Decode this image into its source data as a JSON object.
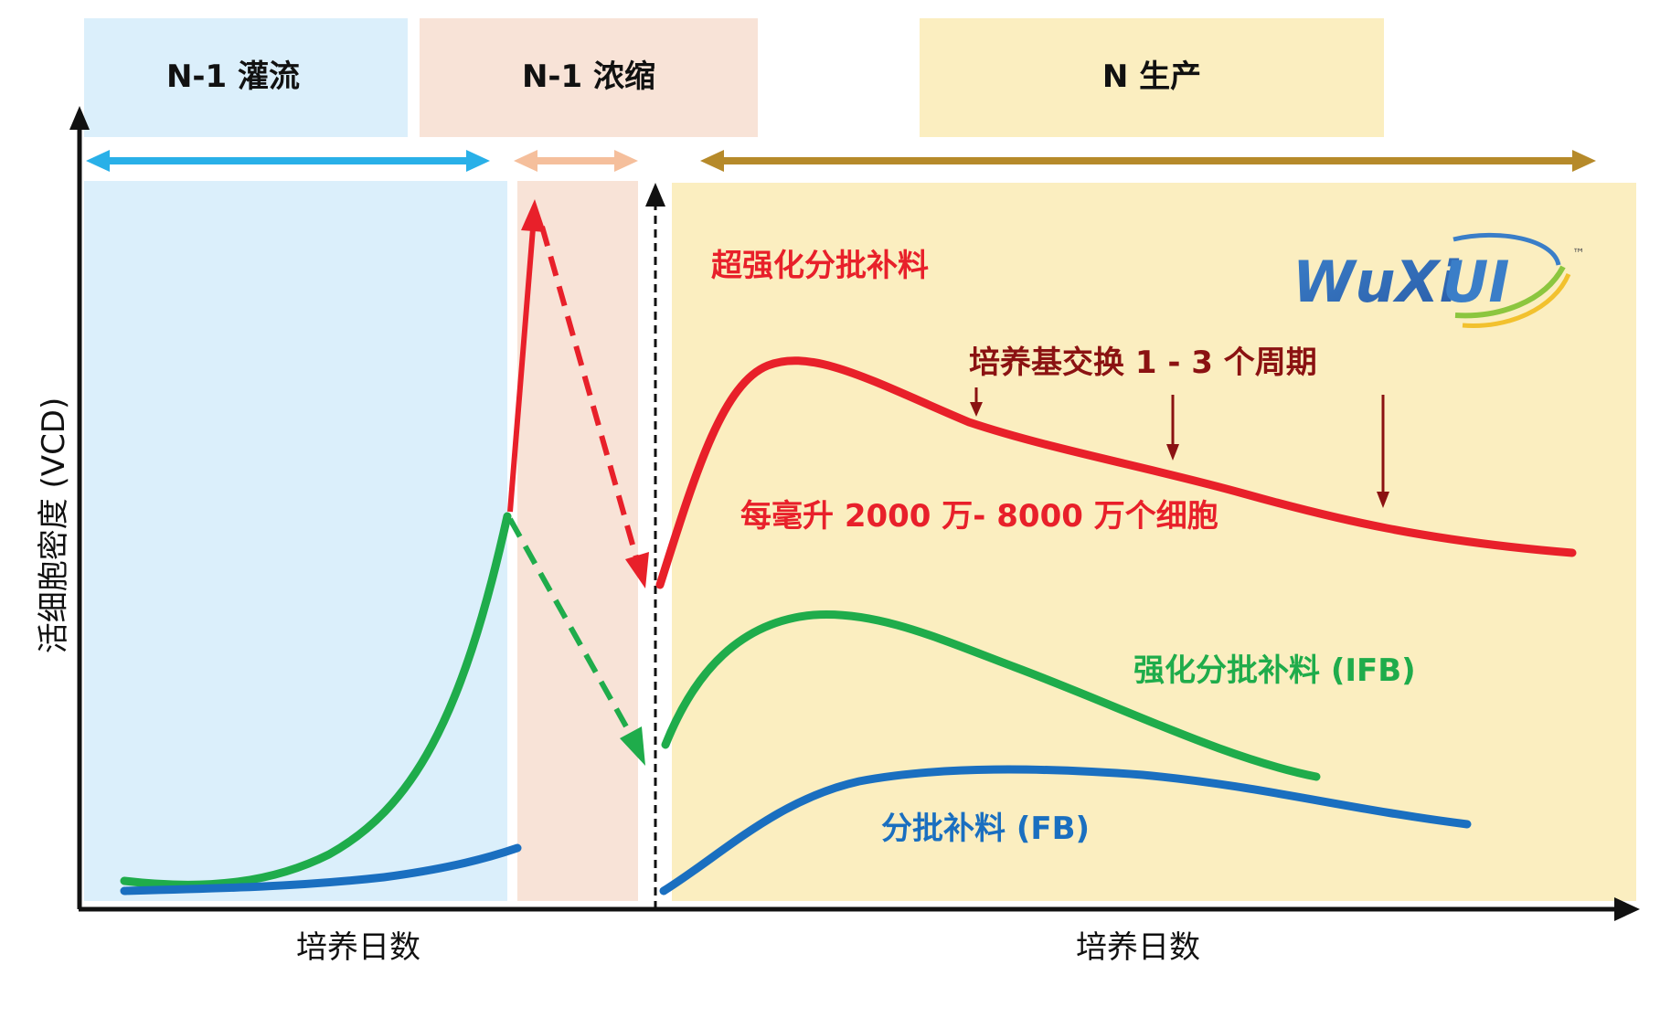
{
  "phases": {
    "perfusion": {
      "label": "N-1 灌流",
      "color": "#dbeffb"
    },
    "concentration": {
      "label": "N-1 浓缩",
      "color": "#f8e3d7"
    },
    "production": {
      "label": "N 生产",
      "color": "#fbeec0"
    }
  },
  "axes": {
    "y_label": "活细胞密度 (VCD)",
    "x_label_left": "培养日数",
    "x_label_right": "培养日数"
  },
  "annotations": {
    "uifb": "超强化分批补料",
    "media_exchange": "培养基交换 1 - 3 个周期",
    "density": "每毫升 2000 万- 8000 万个细胞",
    "ifb": "强化分批补料 (IFB)",
    "fb": "分批补料 (FB)"
  },
  "logo": {
    "text": "WuXi",
    "mark": "UI",
    "tm": "™"
  },
  "colors": {
    "red": "#e8202a",
    "green": "#1fac4b",
    "blue": "#1a6fc0",
    "dark_red": "#8b1212",
    "cyan_arrow": "#29b0e8",
    "peach_arrow": "#f5bf9c",
    "gold_arrow": "#b68a2a",
    "logo_blue": "#3a7ec8"
  }
}
